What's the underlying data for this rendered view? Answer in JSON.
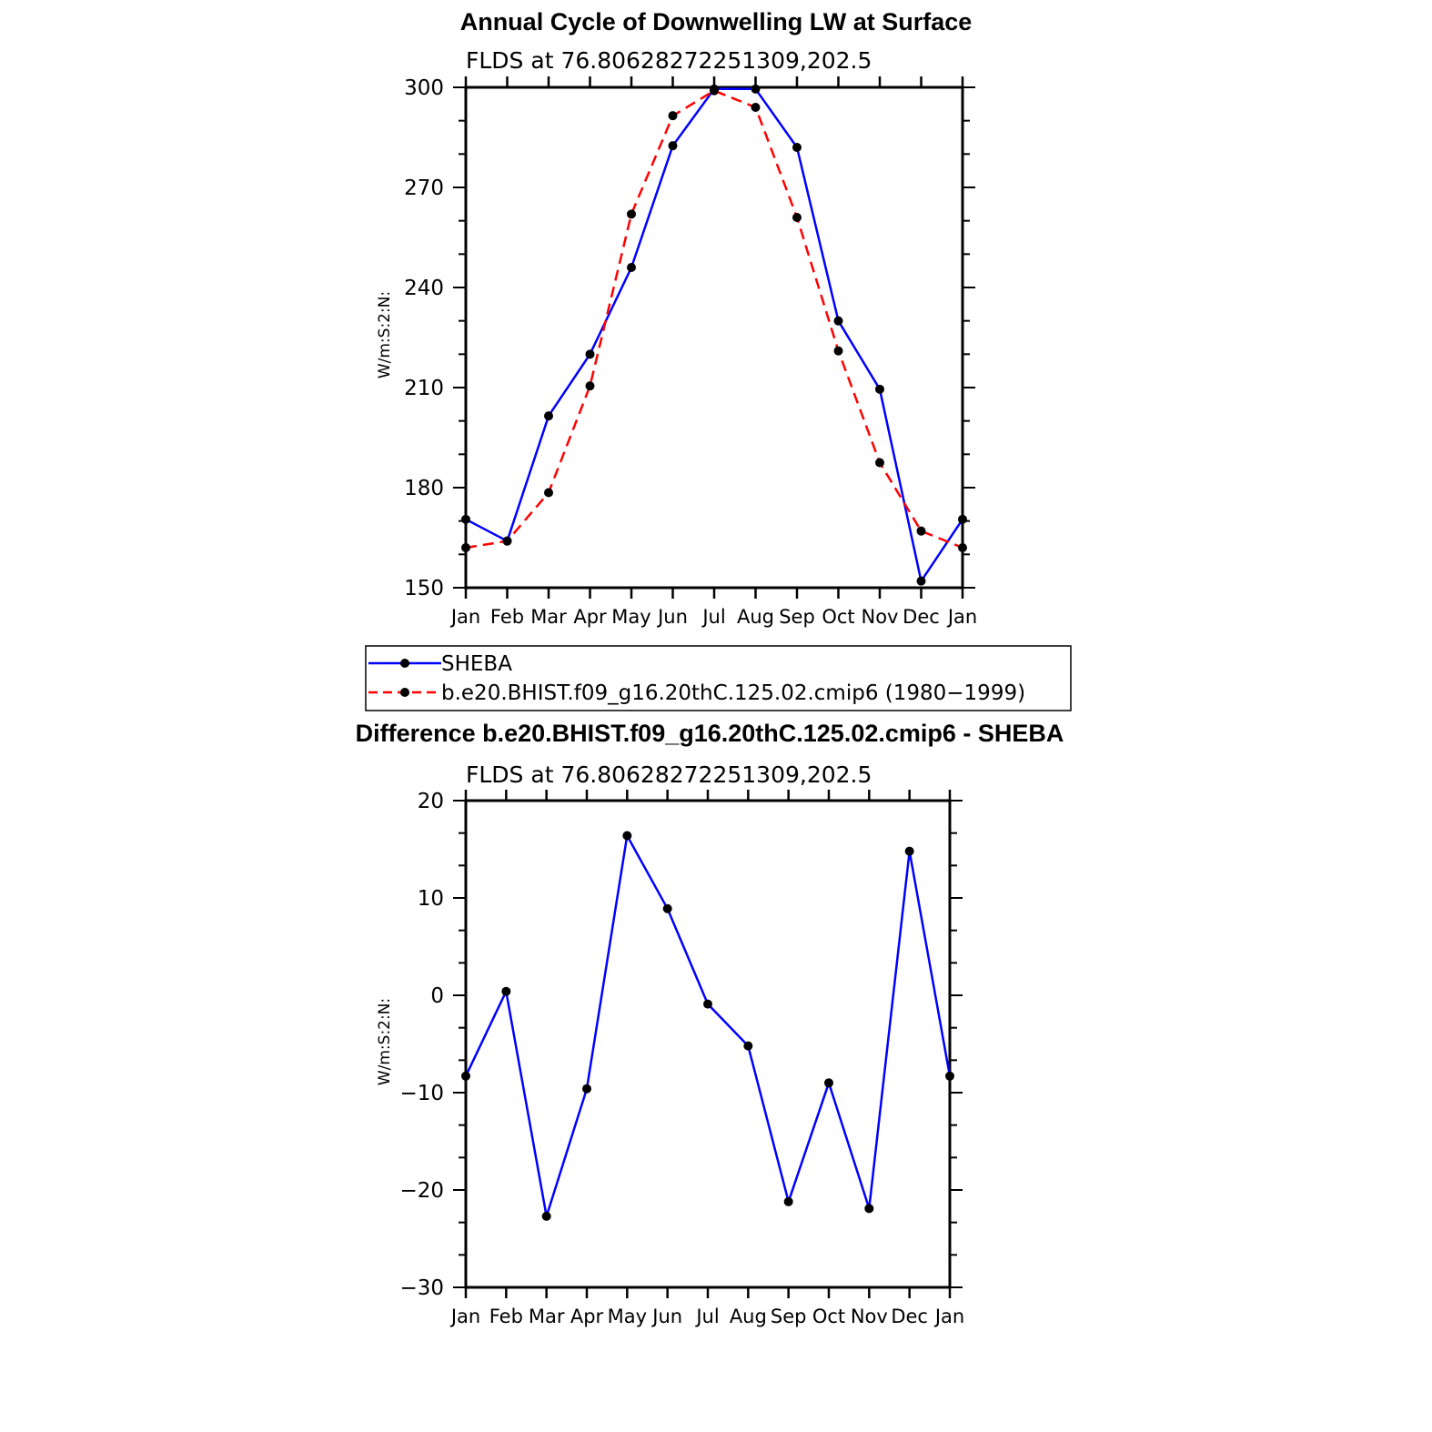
{
  "chart_data": [
    {
      "type": "line",
      "title": "Annual Cycle of Downwelling LW at Surface",
      "subtitle": "FLDS at 76.80628272251309,202.5",
      "ylabel": "W/m:S:2:N:",
      "xlabel": "",
      "ylim": [
        150,
        300
      ],
      "yticks": [
        150,
        180,
        210,
        240,
        270,
        300
      ],
      "categories": [
        "Jan",
        "Feb",
        "Mar",
        "Apr",
        "May",
        "Jun",
        "Jul",
        "Aug",
        "Sep",
        "Oct",
        "Nov",
        "Dec",
        "Jan"
      ],
      "grid": false,
      "legend_position": "bottom",
      "series": [
        {
          "name": "SHEBA",
          "color": "#0000ff",
          "dash": "solid",
          "values": [
            170.5,
            164.0,
            201.5,
            220.0,
            246.0,
            282.5,
            299.5,
            299.5,
            282.0,
            230.0,
            209.5,
            152.0,
            170.5
          ]
        },
        {
          "name": "b.e20.BHIST.f09_g16.20thC.125.02.cmip6 (1980−1999)",
          "color": "#ff0000",
          "dash": "dashed",
          "values": [
            162.0,
            164.0,
            178.5,
            210.5,
            262.0,
            291.5,
            299.0,
            294.0,
            261.0,
            221.0,
            187.5,
            167.0,
            162.0
          ]
        }
      ]
    },
    {
      "type": "line",
      "title": "Difference b.e20.BHIST.f09_g16.20thC.125.02.cmip6 - SHEBA",
      "subtitle": "FLDS at 76.80628272251309,202.5",
      "ylabel": "W/m:S:2:N:",
      "xlabel": "",
      "ylim": [
        -30,
        20
      ],
      "yticks": [
        -30,
        -20,
        -10,
        0,
        10,
        20
      ],
      "ytick_labels": [
        "−30",
        "−20",
        "−10",
        "0",
        "10",
        "20"
      ],
      "categories": [
        "Jan",
        "Feb",
        "Mar",
        "Apr",
        "May",
        "Jun",
        "Jul",
        "Aug",
        "Sep",
        "Oct",
        "Nov",
        "Dec",
        "Jan"
      ],
      "grid": false,
      "series": [
        {
          "color": "#0000ff",
          "dash": "solid",
          "values": [
            -8.3,
            0.4,
            -22.7,
            -9.6,
            16.4,
            8.9,
            -0.9,
            -5.2,
            -21.2,
            -9.0,
            -21.9,
            14.8,
            -8.3
          ]
        }
      ]
    }
  ]
}
